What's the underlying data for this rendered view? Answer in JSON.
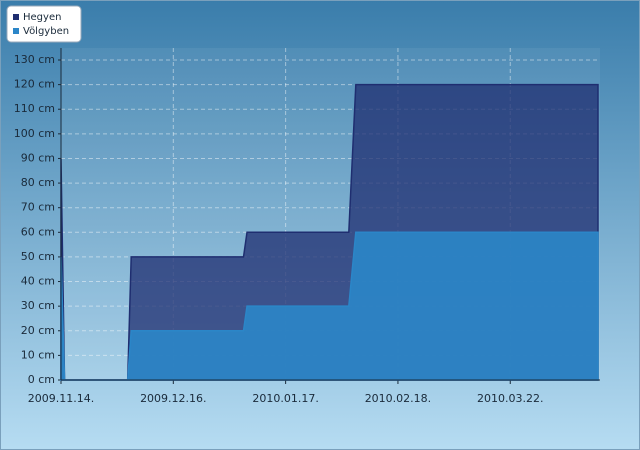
{
  "chart_data": {
    "type": "area",
    "x": [
      "2009.11.14.",
      "2009.11.15.",
      "2009.12.03.",
      "2009.12.04.",
      "2010.01.05.",
      "2010.01.06.",
      "2010.02.04.",
      "2010.02.06.",
      "2010.04.16."
    ],
    "series": [
      {
        "name": "Hegyen",
        "color": "#1f2e70",
        "values": [
          90,
          0,
          0,
          50,
          50,
          60,
          60,
          120,
          120
        ]
      },
      {
        "name": "Völgyben",
        "color": "#2b86c8",
        "values": [
          50,
          0,
          0,
          20,
          20,
          30,
          30,
          60,
          60
        ]
      }
    ],
    "xlim": [
      "2009.11.14.",
      "2010.04.16."
    ],
    "xticks": [
      "2009.11.14.",
      "2009.12.16.",
      "2010.01.17.",
      "2010.02.18.",
      "2010.03.22."
    ],
    "ylim": [
      0,
      130
    ],
    "yticks": [
      {
        "value": 0,
        "label": "0 cm"
      },
      {
        "value": 10,
        "label": "10 cm"
      },
      {
        "value": 20,
        "label": "20 cm"
      },
      {
        "value": 30,
        "label": "30 cm"
      },
      {
        "value": 40,
        "label": "40 cm"
      },
      {
        "value": 50,
        "label": "50 cm"
      },
      {
        "value": 60,
        "label": "60 cm"
      },
      {
        "value": 70,
        "label": "70 cm"
      },
      {
        "value": 80,
        "label": "80 cm"
      },
      {
        "value": 90,
        "label": "90 cm"
      },
      {
        "value": 100,
        "label": "100 cm"
      },
      {
        "value": 110,
        "label": "110 cm"
      },
      {
        "value": 120,
        "label": "120 cm"
      },
      {
        "value": 130,
        "label": "130 cm"
      }
    ],
    "grid": true,
    "legend": "top-left"
  }
}
